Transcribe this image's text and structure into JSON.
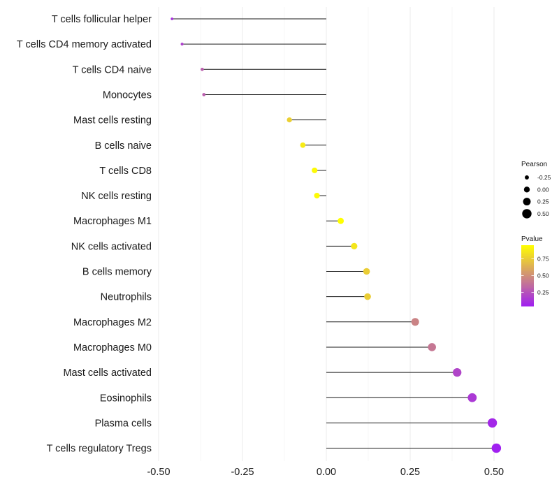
{
  "chart_data": {
    "type": "lollipop",
    "title": "",
    "xlabel": "",
    "ylabel": "",
    "xlim": [
      -0.5,
      0.5
    ],
    "x_ticks": [
      -0.5,
      -0.25,
      0.0,
      0.25,
      0.5
    ],
    "x_tick_labels": [
      "-0.50",
      "-0.25",
      "0.00",
      "0.25",
      "0.50"
    ],
    "grid": "vertical",
    "categories": [
      "T cells follicular helper",
      "T cells CD4 memory activated",
      "T cells CD4 naive",
      "Monocytes",
      "Mast cells resting",
      "B cells naive",
      "T cells CD8",
      "NK cells resting",
      "Macrophages M1",
      "NK cells activated",
      "B cells memory",
      "Neutrophils",
      "Macrophages M2",
      "Macrophages M0",
      "Mast cells activated",
      "Eosinophils",
      "Plasma cells",
      "T cells regulatory  Tregs"
    ],
    "values": [
      -0.46,
      -0.43,
      -0.37,
      -0.365,
      -0.11,
      -0.07,
      -0.035,
      -0.028,
      0.043,
      0.083,
      0.12,
      0.123,
      0.265,
      0.315,
      0.39,
      0.435,
      0.495,
      0.507
    ],
    "pvalues": [
      0.12,
      0.18,
      0.3,
      0.3,
      0.76,
      0.87,
      0.93,
      0.93,
      0.95,
      0.85,
      0.75,
      0.75,
      0.45,
      0.4,
      0.2,
      0.15,
      0.08,
      0.05
    ],
    "size_legend": {
      "title": "Pearson",
      "values": [
        -0.25,
        0.0,
        0.25,
        0.5
      ],
      "labels": [
        "-0.25",
        "0.00",
        "0.25",
        "0.50"
      ]
    },
    "color_legend": {
      "title": "Pvalue",
      "values": [
        0.75,
        0.5,
        0.25
      ],
      "labels": [
        "0.75",
        "0.50",
        "0.25"
      ],
      "range": [
        0.05,
        0.95
      ],
      "low_color": "#a020f0",
      "high_color": "#ffff00"
    }
  }
}
